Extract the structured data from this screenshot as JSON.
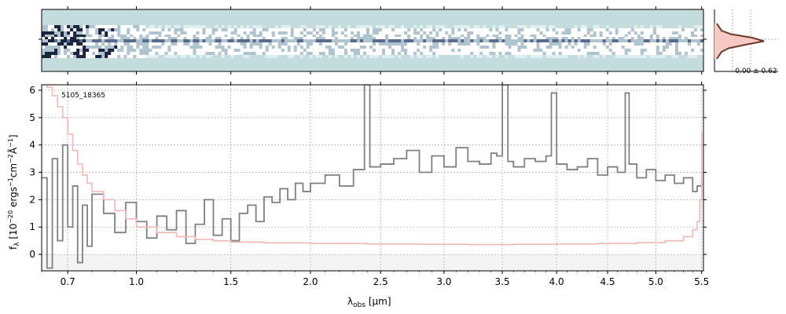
{
  "chart_data": {
    "type": "line",
    "object_id": "5105_18365",
    "xlabel_main": "λ",
    "xlabel_sub": "obs",
    "xlabel_unit": " [μm]",
    "ylabel_main": "f",
    "ylabel_sub": "λ",
    "ylabel_rest": " [10",
    "ylabel_exp1": "−20",
    "ylabel_mid": " ergs",
    "ylabel_exp2": "−1",
    "ylabel_cm": "cm",
    "ylabel_exp3": "−2",
    "ylabel_ang": "Å",
    "ylabel_exp4": "−1",
    "ylabel_end": "]",
    "ylim": [
      -0.6,
      6.2
    ],
    "xlim": [
      0.6,
      5.52
    ],
    "x_scale": "sqrt",
    "x_ticks": [
      {
        "v": 0.7,
        "label": "0.7"
      },
      {
        "v": 1.0,
        "label": "1.0"
      },
      {
        "v": 1.5,
        "label": "1.5"
      },
      {
        "v": 2.0,
        "label": "2.0"
      },
      {
        "v": 2.5,
        "label": "2.5"
      },
      {
        "v": 3.0,
        "label": "3.0"
      },
      {
        "v": 3.5,
        "label": "3.5"
      },
      {
        "v": 4.0,
        "label": "4.0"
      },
      {
        "v": 4.5,
        "label": "4.5"
      },
      {
        "v": 5.0,
        "label": "5.0"
      },
      {
        "v": 5.5,
        "label": "5.5"
      }
    ],
    "y_ticks": [
      {
        "v": 0,
        "label": "0"
      },
      {
        "v": 1,
        "label": "1"
      },
      {
        "v": 2,
        "label": "2"
      },
      {
        "v": 3,
        "label": "3"
      },
      {
        "v": 4,
        "label": "4"
      },
      {
        "v": 5,
        "label": "5"
      },
      {
        "v": 6,
        "label": "6"
      }
    ],
    "grid": true,
    "series": [
      {
        "color": "#808080",
        "style": "step",
        "x": [
          0.6,
          0.62,
          0.64,
          0.66,
          0.68,
          0.7,
          0.72,
          0.74,
          0.76,
          0.78,
          0.8,
          0.85,
          0.9,
          0.95,
          1.0,
          1.05,
          1.1,
          1.15,
          1.2,
          1.25,
          1.3,
          1.35,
          1.4,
          1.45,
          1.5,
          1.55,
          1.6,
          1.65,
          1.7,
          1.75,
          1.8,
          1.85,
          1.9,
          1.95,
          2.0,
          2.1,
          2.2,
          2.3,
          2.38,
          2.42,
          2.5,
          2.6,
          2.7,
          2.8,
          2.9,
          3.0,
          3.1,
          3.2,
          3.3,
          3.4,
          3.45,
          3.5,
          3.55,
          3.6,
          3.7,
          3.8,
          3.9,
          3.95,
          4.0,
          4.1,
          4.2,
          4.3,
          4.4,
          4.5,
          4.6,
          4.68,
          4.72,
          4.8,
          4.9,
          5.0,
          5.1,
          5.2,
          5.3,
          5.4,
          5.45,
          5.5
        ],
        "y": [
          2.8,
          -0.5,
          3.5,
          0.5,
          4.0,
          1.0,
          2.5,
          -0.3,
          1.8,
          0.3,
          2.2,
          1.5,
          0.8,
          1.9,
          1.2,
          0.6,
          1.4,
          0.9,
          1.6,
          0.4,
          1.1,
          2.0,
          0.7,
          1.3,
          0.5,
          1.5,
          1.8,
          1.2,
          2.1,
          1.9,
          2.4,
          2.0,
          2.6,
          2.3,
          2.6,
          2.9,
          2.5,
          3.1,
          6.2,
          3.2,
          3.3,
          3.5,
          3.8,
          3.0,
          3.6,
          3.2,
          3.9,
          3.4,
          3.3,
          3.7,
          3.6,
          6.2,
          3.4,
          3.2,
          3.5,
          3.4,
          3.6,
          5.9,
          3.3,
          3.1,
          3.2,
          3.5,
          2.9,
          3.2,
          3.0,
          5.9,
          3.3,
          2.8,
          3.1,
          2.7,
          2.9,
          2.6,
          2.8,
          2.3,
          2.5,
          2.7
        ]
      },
      {
        "color": "#f4b8b4",
        "style": "step",
        "x": [
          0.6,
          0.62,
          0.64,
          0.66,
          0.68,
          0.7,
          0.72,
          0.74,
          0.76,
          0.78,
          0.8,
          0.85,
          0.9,
          0.95,
          1.0,
          1.1,
          1.2,
          1.3,
          1.4,
          1.5,
          1.7,
          2.0,
          2.4,
          2.8,
          3.2,
          3.6,
          4.0,
          4.4,
          4.8,
          5.1,
          5.3,
          5.4,
          5.45,
          5.48,
          5.5
        ],
        "y": [
          6.2,
          6.1,
          5.8,
          5.4,
          5.0,
          4.4,
          3.8,
          3.3,
          2.9,
          2.6,
          2.3,
          2.0,
          1.6,
          1.3,
          1.0,
          0.8,
          0.65,
          0.55,
          0.5,
          0.45,
          0.42,
          0.4,
          0.38,
          0.37,
          0.36,
          0.37,
          0.38,
          0.4,
          0.43,
          0.5,
          0.65,
          0.9,
          1.2,
          2.0,
          4.5
        ]
      }
    ],
    "spectrum2d": {
      "colormap": [
        "#c5dcdc",
        "#dfeeee",
        "#ffffff",
        "#b0c4cf",
        "#5a6a8a",
        "#1c2540"
      ],
      "trace_label": ""
    },
    "profile": {
      "label": "-0.00 ± 0.62",
      "line_color": "#6b3a2a",
      "fill_color": "#f7c9c2",
      "values": [
        0.0,
        0.05,
        0.1,
        0.3,
        0.75,
        1.0,
        0.6,
        0.25,
        0.1,
        0.05,
        0.0
      ]
    }
  }
}
